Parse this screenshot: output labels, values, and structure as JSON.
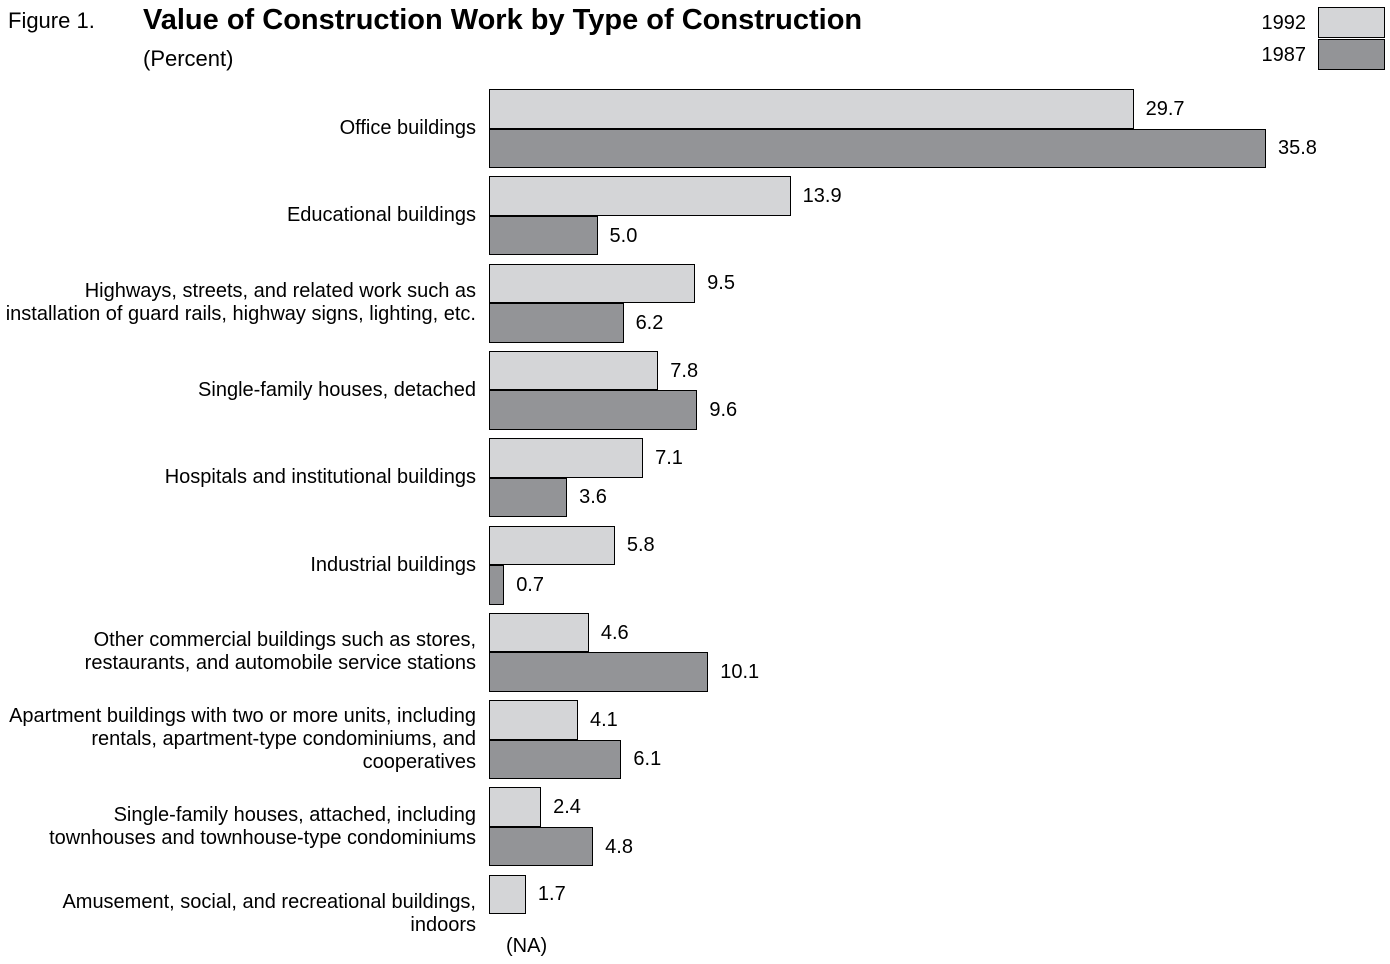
{
  "chart_data": {
    "type": "bar",
    "orientation": "horizontal",
    "figure_label": "Figure 1.",
    "title": "Value of Construction Work by Type of Construction",
    "subtitle": "(Percent)",
    "categories": [
      "Office buildings",
      "Educational buildings",
      "Highways, streets, and related work such as installation of guard rails, highway signs, lighting, etc.",
      "Single-family houses, detached",
      "Hospitals and institutional buildings",
      "Industrial buildings",
      "Other commercial buildings such as stores, restaurants, and automobile service stations",
      "Apartment buildings with two or more units, including rentals, apartment-type condominiums, and cooperatives",
      "Single-family houses, attached, including townhouses and townhouse-type condominiums",
      "Amusement, social, and recreational buildings, indoors"
    ],
    "series": [
      {
        "name": "1992",
        "color": "#d4d5d7",
        "values": [
          29.7,
          13.9,
          9.5,
          7.8,
          7.1,
          5.8,
          4.6,
          4.1,
          2.4,
          1.7
        ],
        "value_labels": [
          "29.7",
          "13.9",
          "9.5",
          "7.8",
          "7.1",
          "5.8",
          "4.6",
          "4.1",
          "2.4",
          "1.7"
        ]
      },
      {
        "name": "1987",
        "color": "#939497",
        "values": [
          35.8,
          5.0,
          6.2,
          9.6,
          3.6,
          0.7,
          10.1,
          6.1,
          4.8,
          null
        ],
        "value_labels": [
          "35.8",
          "5.0",
          "6.2",
          "9.6",
          "3.6",
          "0.7",
          "10.1",
          "6.1",
          "4.8",
          "(NA)"
        ]
      }
    ],
    "legend": "top-right"
  }
}
